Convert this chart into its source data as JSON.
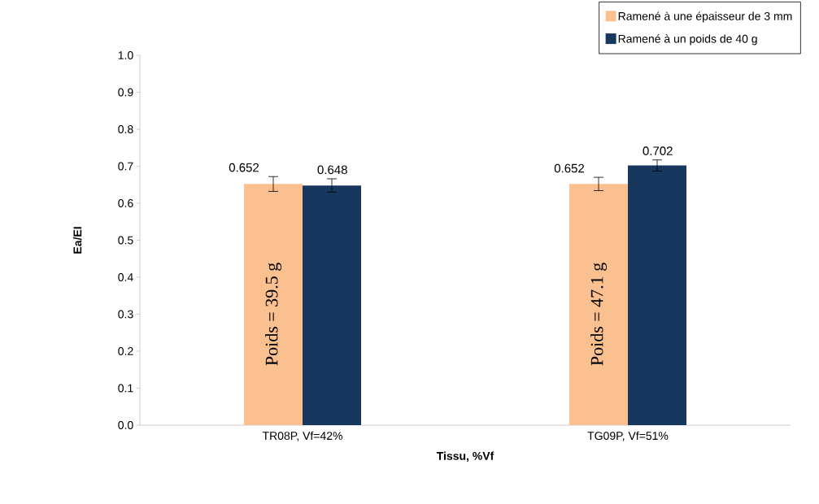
{
  "chart_data": {
    "type": "bar",
    "xlabel": "Tissu, %Vf",
    "ylabel": "Ea/EI",
    "categories": [
      "TR08P, Vf=42%",
      "TG09P, Vf=51%"
    ],
    "series": [
      {
        "name": "Ramené à une épaisseur de 3 mm",
        "color": "#fac090",
        "values": [
          0.652,
          0.652
        ],
        "errors": [
          0.02,
          0.018
        ]
      },
      {
        "name": "Ramené à un poids de 40 g",
        "color": "#17375e",
        "values": [
          0.648,
          0.702
        ],
        "errors": [
          0.018,
          0.015
        ]
      }
    ],
    "ylim": [
      0,
      1
    ],
    "yticks": [
      {
        "value": 0,
        "label": "0.0"
      },
      {
        "value": 0.1,
        "label": "0.1"
      },
      {
        "value": 0.2,
        "label": "0.2"
      },
      {
        "value": 0.3,
        "label": "0.3"
      },
      {
        "value": 0.4,
        "label": "0.4"
      },
      {
        "value": 0.5,
        "label": "0.5"
      },
      {
        "value": 0.6,
        "label": "0.6"
      },
      {
        "value": 0.7,
        "label": "0.7"
      },
      {
        "value": 0.8,
        "label": "0.8"
      },
      {
        "value": 0.9,
        "label": "0.9"
      },
      {
        "value": 1,
        "label": "1.0"
      }
    ],
    "data_labels": true,
    "grid": false,
    "legend": "top right",
    "annotations": [
      {
        "text": "Poids = 39.5 g",
        "x": "TR08P, Vf=42%"
      },
      {
        "text": "Poids = 47.1 g",
        "x": "TG09P, Vf=51%"
      }
    ]
  }
}
